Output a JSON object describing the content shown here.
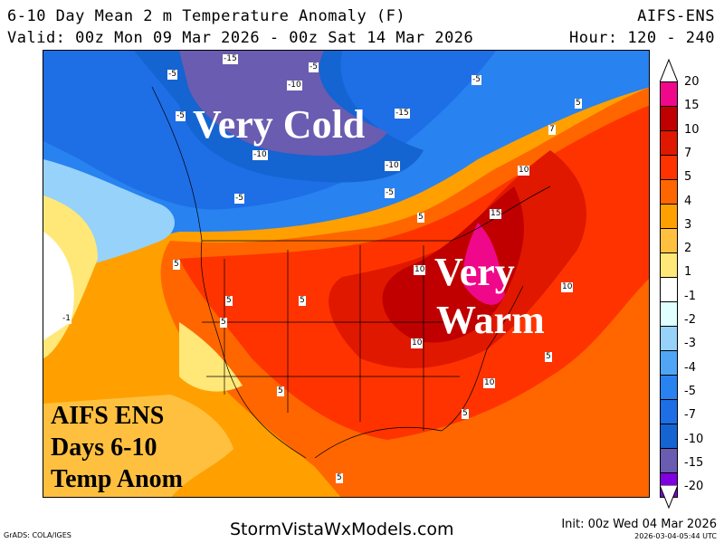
{
  "header": {
    "title": "6-10 Day Mean 2 m Temperature Anomaly (F)",
    "model": "AIFS-ENS",
    "valid": "Valid: 00z Mon 09 Mar 2026 - 00z Sat 14 Mar 2026",
    "hours": "Hour: 120 - 240"
  },
  "map": {
    "overlay_cold": "Very Cold",
    "overlay_warm_1": "Very",
    "overlay_warm_2": "Warm",
    "annotation": [
      "AIFS ENS",
      "Days 6-10",
      "Temp Anom"
    ],
    "contour_labels": [
      "-15",
      "-5",
      "-5",
      "-10",
      "-5",
      "-5",
      "-15",
      "7",
      "-10",
      "5",
      "-10",
      "10",
      "-5",
      "-5",
      "5",
      "15",
      "5",
      "10",
      "5",
      "5",
      "10",
      "5",
      "10",
      "5",
      "10",
      "5",
      "5",
      "5",
      "-1"
    ]
  },
  "colorbar": {
    "labels": [
      "20",
      "15",
      "10",
      "7",
      "5",
      "4",
      "3",
      "2",
      "1",
      "-1",
      "-2",
      "-3",
      "-4",
      "-5",
      "-7",
      "-10",
      "-15",
      "-20"
    ],
    "colors": [
      "#f0088a",
      "#c00000",
      "#e01800",
      "#ff3300",
      "#ff6600",
      "#ffa000",
      "#ffc040",
      "#ffe878",
      "#ffffff",
      "#e0ffff",
      "#96d2fa",
      "#50a5f5",
      "#2882f0",
      "#1e6ee6",
      "#1464d2",
      "#6a5cb0",
      "#8000e0"
    ]
  },
  "footer": {
    "grads": "GrADS: COLA/IGES",
    "site": "StormVistaWxModels.com",
    "init": "Init: 00z Wed 04 Mar 2026",
    "timestamp": "2026-03-04-05:44 UTC"
  }
}
